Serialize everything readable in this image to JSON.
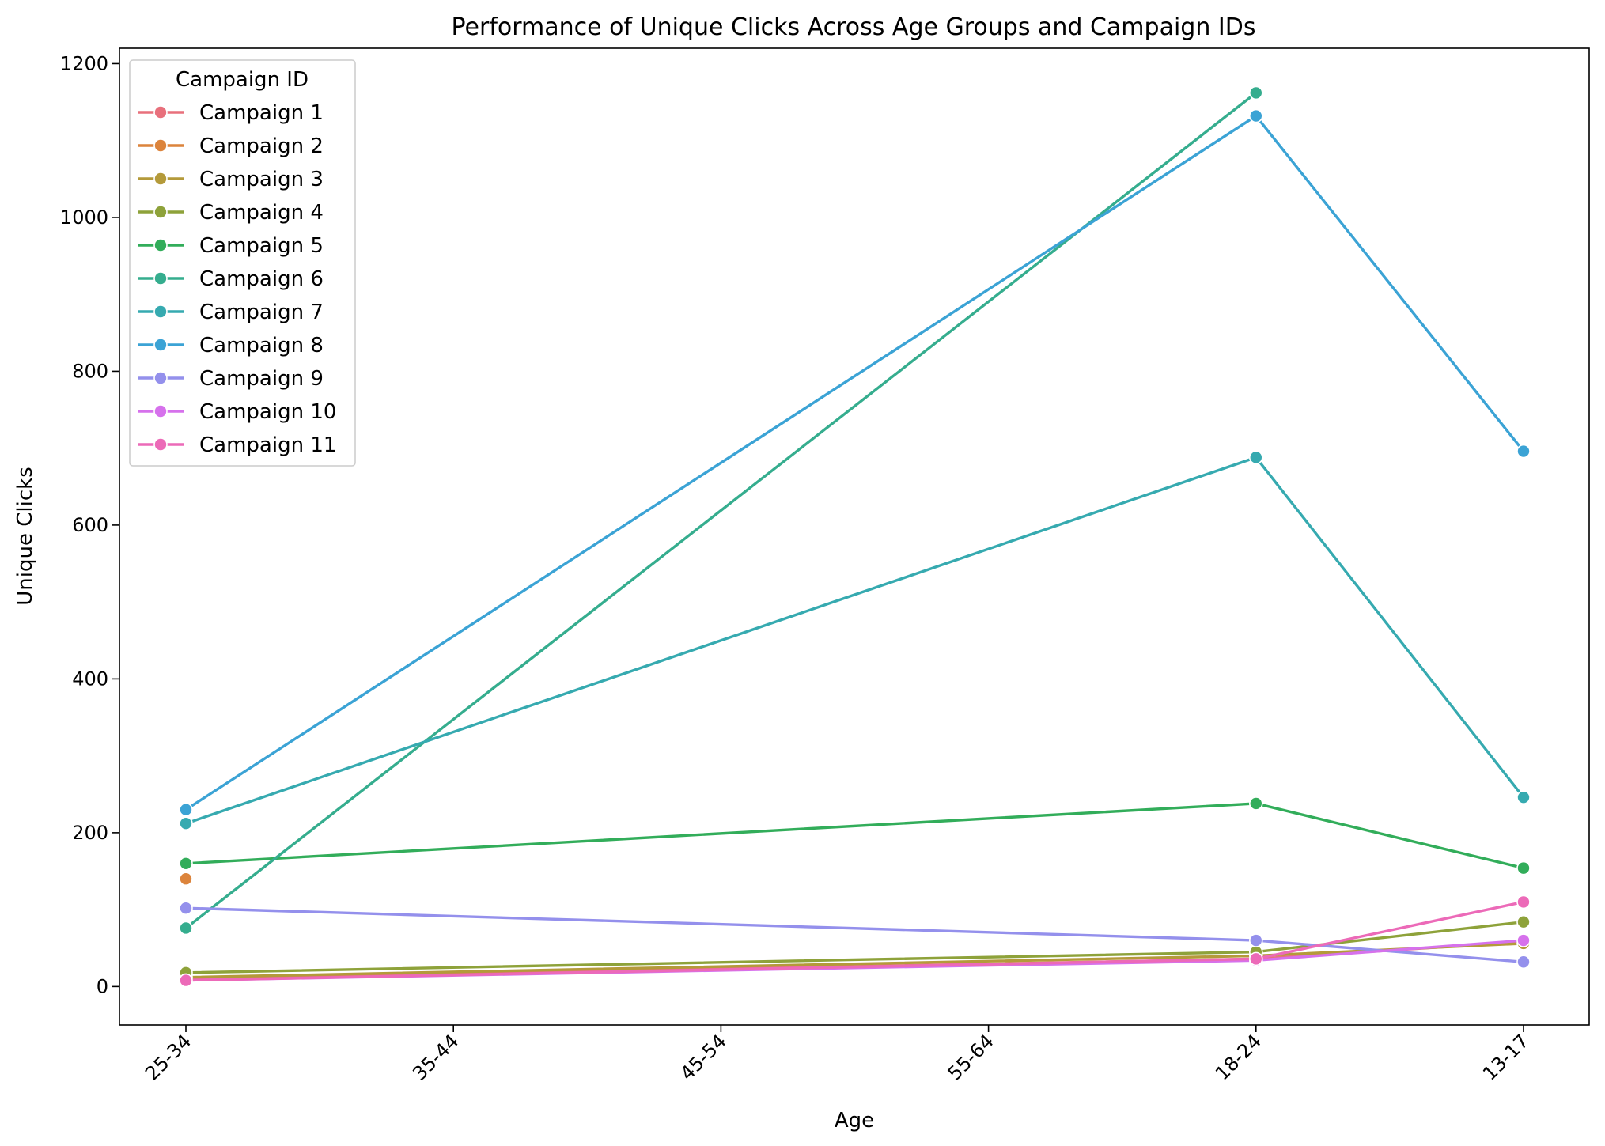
{
  "chart_data": {
    "type": "line",
    "title": "Performance of Unique Clicks Across Age Groups and Campaign IDs",
    "xlabel": "Age",
    "ylabel": "Unique Clicks",
    "categories": [
      "25-34",
      "35-44",
      "45-54",
      "55-64",
      "18-24",
      "13-17"
    ],
    "yticks": [
      0,
      200,
      400,
      600,
      800,
      1000,
      1200
    ],
    "ylim": [
      -50,
      1220
    ],
    "grid": false,
    "legend": {
      "title": "Campaign ID",
      "placement": "top-left"
    },
    "series": [
      {
        "name": "Campaign 1",
        "color": "#e8707c",
        "values": [
          10,
          null,
          null,
          null,
          36,
          58
        ]
      },
      {
        "name": "Campaign 2",
        "color": "#dc843c",
        "values": [
          140,
          null,
          null,
          null,
          null,
          null
        ]
      },
      {
        "name": "Campaign 3",
        "color": "#b49a3a",
        "values": [
          12,
          null,
          null,
          null,
          40,
          56
        ]
      },
      {
        "name": "Campaign 4",
        "color": "#8ea23a",
        "values": [
          18,
          null,
          null,
          null,
          45,
          84
        ]
      },
      {
        "name": "Campaign 5",
        "color": "#32ad5a",
        "values": [
          160,
          null,
          null,
          null,
          238,
          154
        ]
      },
      {
        "name": "Campaign 6",
        "color": "#35ad8e",
        "values": [
          76,
          null,
          null,
          null,
          1162,
          null
        ]
      },
      {
        "name": "Campaign 7",
        "color": "#36aab0",
        "values": [
          212,
          null,
          null,
          null,
          688,
          246
        ]
      },
      {
        "name": "Campaign 8",
        "color": "#3ba3d5",
        "values": [
          230,
          null,
          null,
          null,
          1132,
          696
        ]
      },
      {
        "name": "Campaign 9",
        "color": "#9490ec",
        "values": [
          102,
          null,
          null,
          null,
          60,
          32
        ]
      },
      {
        "name": "Campaign 10",
        "color": "#d671ec",
        "values": [
          8,
          null,
          null,
          null,
          34,
          60
        ]
      },
      {
        "name": "Campaign 11",
        "color": "#ec6ab8",
        "values": [
          8,
          null,
          null,
          null,
          36,
          110
        ]
      }
    ]
  }
}
